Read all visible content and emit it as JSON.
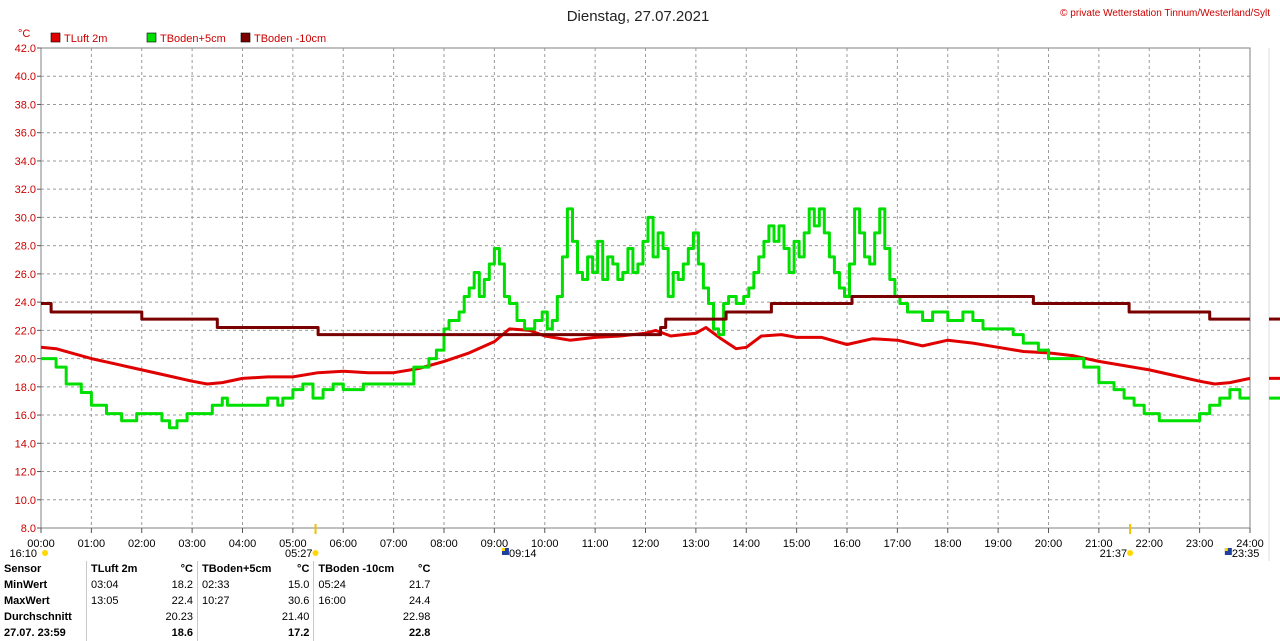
{
  "header": {
    "title": "Dienstag, 27.07.2021",
    "copyright": "© private Wetterstation Tinnum/Westerland/Sylt"
  },
  "chart_data": {
    "type": "line",
    "ylabel": "°C",
    "ylim": [
      8,
      42
    ],
    "yticks": [
      "8.0",
      "10.0",
      "12.0",
      "14.0",
      "16.0",
      "18.0",
      "20.0",
      "22.0",
      "24.0",
      "26.0",
      "28.0",
      "30.0",
      "32.0",
      "34.0",
      "36.0",
      "38.0",
      "40.0",
      "42.0"
    ],
    "xlim": [
      0,
      24
    ],
    "xticks": [
      "00:00",
      "01:00",
      "02:00",
      "03:00",
      "04:00",
      "05:00",
      "06:00",
      "07:00",
      "08:00",
      "09:00",
      "10:00",
      "11:00",
      "12:00",
      "13:00",
      "14:00",
      "15:00",
      "16:00",
      "17:00",
      "18:00",
      "19:00",
      "20:00",
      "21:00",
      "22:00",
      "23:00",
      "24:00"
    ],
    "grid": true,
    "legend_position": "top-left",
    "sun_markers": [
      {
        "label": "16:10",
        "x": 0,
        "kind": "sun"
      },
      {
        "label": "05:27",
        "x": 5.45,
        "kind": "sun"
      },
      {
        "label": "09:14",
        "x": 9.23,
        "kind": "moon"
      },
      {
        "label": "21:37",
        "x": 21.62,
        "kind": "sun"
      },
      {
        "label": "23:35",
        "x": 23.58,
        "kind": "moon"
      }
    ],
    "series": [
      {
        "name": "TLuft 2m",
        "color": "#e00000",
        "step": false,
        "points": [
          [
            0,
            20.8
          ],
          [
            0.3,
            20.7
          ],
          [
            0.6,
            20.4
          ],
          [
            1,
            20.0
          ],
          [
            1.5,
            19.6
          ],
          [
            2,
            19.2
          ],
          [
            2.5,
            18.8
          ],
          [
            3,
            18.4
          ],
          [
            3.3,
            18.2
          ],
          [
            3.6,
            18.3
          ],
          [
            4,
            18.6
          ],
          [
            4.5,
            18.7
          ],
          [
            5,
            18.7
          ],
          [
            5.5,
            19.0
          ],
          [
            6,
            19.1
          ],
          [
            6.5,
            19.0
          ],
          [
            7,
            19.0
          ],
          [
            7.5,
            19.3
          ],
          [
            8,
            19.8
          ],
          [
            8.5,
            20.4
          ],
          [
            9,
            21.2
          ],
          [
            9.3,
            22.1
          ],
          [
            9.7,
            22.0
          ],
          [
            10,
            21.6
          ],
          [
            10.5,
            21.3
          ],
          [
            11,
            21.5
          ],
          [
            11.5,
            21.6
          ],
          [
            12,
            21.8
          ],
          [
            12.2,
            22.0
          ],
          [
            12.5,
            21.6
          ],
          [
            13,
            21.8
          ],
          [
            13.2,
            22.2
          ],
          [
            13.5,
            21.4
          ],
          [
            13.8,
            20.7
          ],
          [
            14,
            20.8
          ],
          [
            14.3,
            21.6
          ],
          [
            14.7,
            21.7
          ],
          [
            15,
            21.5
          ],
          [
            15.5,
            21.5
          ],
          [
            16,
            21.0
          ],
          [
            16.5,
            21.4
          ],
          [
            17,
            21.3
          ],
          [
            17.5,
            20.9
          ],
          [
            18,
            21.3
          ],
          [
            18.5,
            21.1
          ],
          [
            19,
            20.8
          ],
          [
            19.5,
            20.5
          ],
          [
            20,
            20.4
          ],
          [
            20.5,
            20.2
          ],
          [
            21,
            19.8
          ],
          [
            21.5,
            19.5
          ],
          [
            22,
            19.2
          ],
          [
            22.5,
            18.8
          ],
          [
            23,
            18.4
          ],
          [
            23.3,
            18.2
          ],
          [
            23.6,
            18.3
          ],
          [
            24,
            18.6
          ]
        ]
      },
      {
        "name": "TBoden+5cm",
        "color": "#00e000",
        "step": true,
        "points": [
          [
            0,
            20.0
          ],
          [
            0.3,
            19.4
          ],
          [
            0.5,
            18.2
          ],
          [
            0.8,
            17.6
          ],
          [
            1,
            16.7
          ],
          [
            1.3,
            16.1
          ],
          [
            1.6,
            15.6
          ],
          [
            1.9,
            16.1
          ],
          [
            2.3,
            16.1
          ],
          [
            2.4,
            15.6
          ],
          [
            2.55,
            15.1
          ],
          [
            2.7,
            15.6
          ],
          [
            2.9,
            16.1
          ],
          [
            3.3,
            16.1
          ],
          [
            3.4,
            16.7
          ],
          [
            3.6,
            17.2
          ],
          [
            3.7,
            16.7
          ],
          [
            4,
            16.7
          ],
          [
            4.4,
            16.7
          ],
          [
            4.5,
            17.2
          ],
          [
            4.7,
            16.7
          ],
          [
            4.8,
            17.2
          ],
          [
            5,
            17.8
          ],
          [
            5.2,
            18.2
          ],
          [
            5.4,
            17.2
          ],
          [
            5.6,
            17.8
          ],
          [
            5.8,
            18.2
          ],
          [
            6,
            17.8
          ],
          [
            6.2,
            17.8
          ],
          [
            6.4,
            18.2
          ],
          [
            6.7,
            18.2
          ],
          [
            7,
            18.2
          ],
          [
            7.2,
            18.2
          ],
          [
            7.4,
            19.4
          ],
          [
            7.6,
            19.4
          ],
          [
            7.7,
            20.0
          ],
          [
            7.85,
            20.6
          ],
          [
            8,
            22.1
          ],
          [
            8.1,
            22.7
          ],
          [
            8.3,
            23.3
          ],
          [
            8.4,
            24.4
          ],
          [
            8.5,
            25.0
          ],
          [
            8.6,
            26.1
          ],
          [
            8.7,
            24.4
          ],
          [
            8.8,
            25.6
          ],
          [
            8.9,
            26.7
          ],
          [
            9.0,
            27.8
          ],
          [
            9.1,
            26.7
          ],
          [
            9.2,
            24.4
          ],
          [
            9.3,
            23.9
          ],
          [
            9.45,
            22.7
          ],
          [
            9.6,
            22.1
          ],
          [
            9.8,
            22.7
          ],
          [
            9.95,
            23.3
          ],
          [
            10.05,
            22.1
          ],
          [
            10.15,
            22.7
          ],
          [
            10.25,
            24.4
          ],
          [
            10.35,
            27.2
          ],
          [
            10.45,
            30.6
          ],
          [
            10.55,
            28.3
          ],
          [
            10.65,
            26.1
          ],
          [
            10.75,
            25.6
          ],
          [
            10.85,
            27.2
          ],
          [
            10.95,
            26.1
          ],
          [
            11.05,
            28.3
          ],
          [
            11.15,
            25.6
          ],
          [
            11.25,
            27.2
          ],
          [
            11.35,
            26.7
          ],
          [
            11.45,
            25.6
          ],
          [
            11.55,
            26.1
          ],
          [
            11.65,
            27.8
          ],
          [
            11.75,
            26.1
          ],
          [
            11.85,
            26.7
          ],
          [
            11.95,
            28.3
          ],
          [
            12.05,
            30.0
          ],
          [
            12.15,
            27.2
          ],
          [
            12.25,
            28.9
          ],
          [
            12.35,
            27.8
          ],
          [
            12.45,
            24.4
          ],
          [
            12.55,
            26.1
          ],
          [
            12.65,
            25.6
          ],
          [
            12.75,
            26.7
          ],
          [
            12.85,
            27.8
          ],
          [
            12.95,
            28.9
          ],
          [
            13.05,
            26.7
          ],
          [
            13.15,
            25.0
          ],
          [
            13.25,
            23.9
          ],
          [
            13.35,
            22.1
          ],
          [
            13.45,
            21.7
          ],
          [
            13.55,
            23.9
          ],
          [
            13.65,
            24.4
          ],
          [
            13.8,
            23.9
          ],
          [
            13.95,
            24.4
          ],
          [
            14.05,
            25.0
          ],
          [
            14.15,
            26.1
          ],
          [
            14.25,
            27.2
          ],
          [
            14.35,
            28.3
          ],
          [
            14.45,
            29.4
          ],
          [
            14.55,
            28.3
          ],
          [
            14.65,
            29.4
          ],
          [
            14.75,
            27.8
          ],
          [
            14.85,
            26.1
          ],
          [
            14.95,
            28.3
          ],
          [
            15.05,
            27.2
          ],
          [
            15.15,
            28.9
          ],
          [
            15.25,
            30.6
          ],
          [
            15.35,
            29.4
          ],
          [
            15.45,
            30.6
          ],
          [
            15.55,
            28.9
          ],
          [
            15.65,
            27.2
          ],
          [
            15.75,
            26.1
          ],
          [
            15.85,
            25.0
          ],
          [
            15.95,
            24.4
          ],
          [
            16.05,
            26.7
          ],
          [
            16.15,
            30.6
          ],
          [
            16.25,
            28.9
          ],
          [
            16.35,
            27.2
          ],
          [
            16.45,
            26.7
          ],
          [
            16.55,
            28.9
          ],
          [
            16.65,
            30.6
          ],
          [
            16.75,
            27.8
          ],
          [
            16.85,
            25.6
          ],
          [
            16.95,
            24.4
          ],
          [
            17.05,
            23.9
          ],
          [
            17.2,
            23.3
          ],
          [
            17.5,
            22.7
          ],
          [
            17.7,
            23.3
          ],
          [
            18,
            22.7
          ],
          [
            18.3,
            23.3
          ],
          [
            18.5,
            22.7
          ],
          [
            18.7,
            22.1
          ],
          [
            19,
            22.1
          ],
          [
            19.3,
            21.7
          ],
          [
            19.5,
            21.1
          ],
          [
            19.8,
            20.6
          ],
          [
            20,
            20.0
          ],
          [
            20.5,
            20.0
          ],
          [
            20.7,
            19.4
          ],
          [
            21,
            18.3
          ],
          [
            21.3,
            17.8
          ],
          [
            21.5,
            17.2
          ],
          [
            21.7,
            16.7
          ],
          [
            21.9,
            16.1
          ],
          [
            22.2,
            15.6
          ],
          [
            22.8,
            15.6
          ],
          [
            23,
            16.1
          ],
          [
            23.2,
            16.7
          ],
          [
            23.4,
            17.2
          ],
          [
            23.6,
            17.8
          ],
          [
            23.8,
            17.2
          ],
          [
            24,
            17.2
          ]
        ]
      },
      {
        "name": "TBoden -10cm",
        "color": "#7a0000",
        "step": true,
        "points": [
          [
            0,
            23.9
          ],
          [
            0.2,
            23.3
          ],
          [
            1.9,
            23.3
          ],
          [
            2.0,
            22.8
          ],
          [
            3.4,
            22.8
          ],
          [
            3.5,
            22.2
          ],
          [
            5.4,
            22.2
          ],
          [
            5.5,
            21.7
          ],
          [
            12.2,
            21.7
          ],
          [
            12.3,
            22.2
          ],
          [
            12.4,
            22.8
          ],
          [
            13.5,
            22.8
          ],
          [
            13.6,
            23.3
          ],
          [
            14.4,
            23.3
          ],
          [
            14.5,
            23.9
          ],
          [
            16.0,
            23.9
          ],
          [
            16.1,
            24.4
          ],
          [
            19.6,
            24.4
          ],
          [
            19.7,
            23.9
          ],
          [
            21.5,
            23.9
          ],
          [
            21.6,
            23.3
          ],
          [
            23.1,
            23.3
          ],
          [
            23.2,
            22.8
          ],
          [
            24,
            22.8
          ]
        ]
      }
    ]
  },
  "stats": {
    "headers": [
      "Sensor",
      "TLuft 2m",
      "°C",
      "TBoden+5cm",
      "°C",
      "TBoden -10cm",
      "°C"
    ],
    "rows": [
      [
        "MinWert",
        "03:04",
        "18.2",
        "02:33",
        "15.0",
        "05:24",
        "21.7"
      ],
      [
        "MaxWert",
        "13:05",
        "22.4",
        "10:27",
        "30.6",
        "16:00",
        "24.4"
      ],
      [
        "Durchschnitt",
        "",
        "20.23",
        "",
        "21.40",
        "",
        "22.98"
      ],
      [
        "27.07. 23:59",
        "",
        "18.6",
        "",
        "17.2",
        "",
        "22.8"
      ]
    ]
  }
}
